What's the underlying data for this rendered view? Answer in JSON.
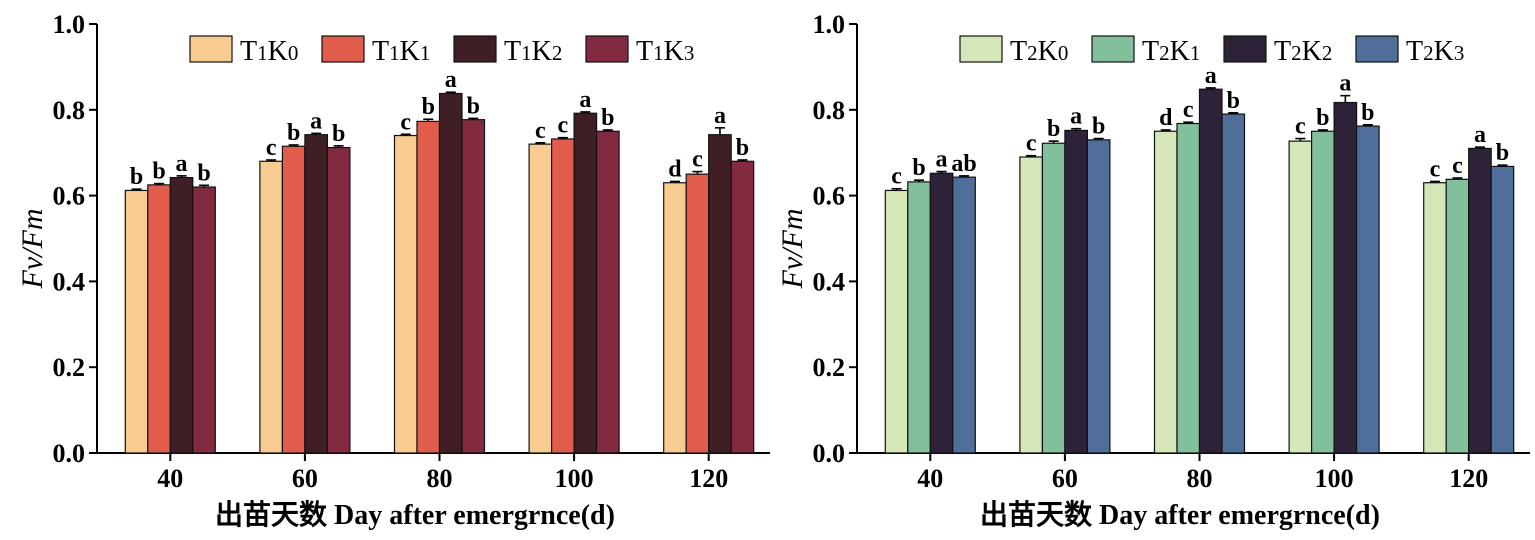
{
  "chart_data": [
    {
      "type": "bar",
      "ylabel": "Fv/Fm",
      "xlabel": "出苗天数 Day after emergrnce(d)",
      "ylim": [
        0,
        1.0
      ],
      "yticks": [
        "0.0",
        "0.2",
        "0.4",
        "0.6",
        "0.8",
        "1.0"
      ],
      "categories": [
        "40",
        "60",
        "80",
        "100",
        "120"
      ],
      "legend_position": "top",
      "series": [
        {
          "name": "T1K0",
          "color": "#F8CC90",
          "values": [
            0.612,
            0.68,
            0.74,
            0.72,
            0.63
          ],
          "errors": [
            0.003,
            0.003,
            0.003,
            0.003,
            0.003
          ],
          "labels": [
            "b",
            "c",
            "c",
            "c",
            "d"
          ]
        },
        {
          "name": "T1K1",
          "color": "#E05D4C",
          "values": [
            0.625,
            0.715,
            0.773,
            0.732,
            0.65
          ],
          "errors": [
            0.003,
            0.003,
            0.005,
            0.003,
            0.006
          ],
          "labels": [
            "b",
            "b",
            "b",
            "c",
            "c"
          ]
        },
        {
          "name": "T1K2",
          "color": "#3F1F24",
          "values": [
            0.642,
            0.742,
            0.838,
            0.792,
            0.742
          ],
          "errors": [
            0.004,
            0.003,
            0.003,
            0.003,
            0.016
          ],
          "labels": [
            "a",
            "a",
            "a",
            "a",
            "a"
          ]
        },
        {
          "name": "T1K3",
          "color": "#822B40",
          "values": [
            0.62,
            0.712,
            0.777,
            0.75,
            0.68
          ],
          "errors": [
            0.004,
            0.004,
            0.003,
            0.003,
            0.003
          ],
          "labels": [
            "b",
            "b",
            "b",
            "b",
            "b"
          ]
        }
      ]
    },
    {
      "type": "bar",
      "ylabel": "Fv/Fm",
      "xlabel": "出苗天数 Day after emergrnce(d)",
      "ylim": [
        0,
        1.0
      ],
      "yticks": [
        "0.0",
        "0.2",
        "0.4",
        "0.6",
        "0.8",
        "1.0"
      ],
      "categories": [
        "40",
        "60",
        "80",
        "100",
        "120"
      ],
      "legend_position": "top",
      "series": [
        {
          "name": "T2K0",
          "color": "#D5E7B8",
          "values": [
            0.612,
            0.69,
            0.75,
            0.727,
            0.63
          ],
          "errors": [
            0.004,
            0.003,
            0.003,
            0.006,
            0.003
          ],
          "labels": [
            "c",
            "c",
            "d",
            "c",
            "c"
          ]
        },
        {
          "name": "T2K1",
          "color": "#82C09D",
          "values": [
            0.632,
            0.722,
            0.768,
            0.75,
            0.638
          ],
          "errors": [
            0.004,
            0.005,
            0.003,
            0.003,
            0.003
          ],
          "labels": [
            "b",
            "b",
            "c",
            "b",
            "c"
          ]
        },
        {
          "name": "T2K2",
          "color": "#2E2238",
          "values": [
            0.652,
            0.752,
            0.848,
            0.817,
            0.71
          ],
          "errors": [
            0.004,
            0.004,
            0.003,
            0.016,
            0.003
          ],
          "labels": [
            "a",
            "a",
            "a",
            "a",
            "a"
          ]
        },
        {
          "name": "T2K3",
          "color": "#506E9A",
          "values": [
            0.643,
            0.73,
            0.79,
            0.762,
            0.668
          ],
          "errors": [
            0.003,
            0.003,
            0.003,
            0.003,
            0.003
          ],
          "labels": [
            "ab",
            "b",
            "b",
            "b",
            "b"
          ]
        }
      ]
    }
  ]
}
